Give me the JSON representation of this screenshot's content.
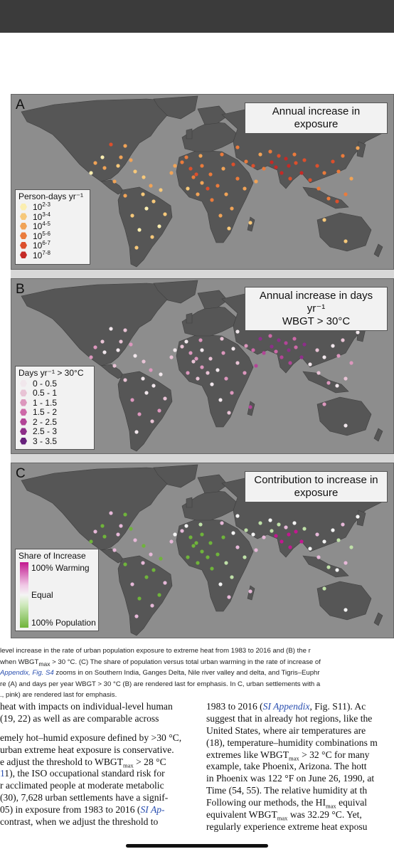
{
  "panels": {
    "a": {
      "letter": "A",
      "title": "Annual increase in exposure",
      "legend_title": "Person-days yr⁻¹",
      "legend": [
        {
          "base": "10",
          "exp": "2-3",
          "color": "#fbeeb0"
        },
        {
          "base": "10",
          "exp": "3-4",
          "color": "#f6c87a"
        },
        {
          "base": "10",
          "exp": "4-5",
          "color": "#f0a357"
        },
        {
          "base": "10",
          "exp": "5-6",
          "color": "#ea7b3c"
        },
        {
          "base": "10",
          "exp": "6-7",
          "color": "#dc4f2c"
        },
        {
          "base": "10",
          "exp": "7-8",
          "color": "#c42a26"
        }
      ]
    },
    "b": {
      "letter": "B",
      "title_line1": "Annual increase in days yr⁻¹",
      "title_line2": "WBGT > 30°C",
      "legend_title": "Days yr⁻¹ > 30°C",
      "legend": [
        {
          "label": "0 - 0.5",
          "color": "#f1e7ec"
        },
        {
          "label": "0.5 - 1",
          "color": "#e8c3d5"
        },
        {
          "label": "1 - 1.5",
          "color": "#dc97bd"
        },
        {
          "label": "1.5 - 2",
          "color": "#cd69a8"
        },
        {
          "label": "2 - 2.5",
          "color": "#b24497"
        },
        {
          "label": "2.5 - 3",
          "color": "#8d2e89"
        },
        {
          "label": "3 - 3.5",
          "color": "#66207b"
        }
      ]
    },
    "c": {
      "letter": "C",
      "title_line1": "Contribution to increase in",
      "title_line2": "exposure",
      "legend_title": "Share of Increase",
      "legend_top": "100% Warming",
      "legend_mid": "Equal",
      "legend_bottom": "100% Population",
      "color_warming": "#c2188f",
      "color_population": "#6fb43b"
    }
  },
  "colors": {
    "ocean": "#8d8d8d",
    "land": "#565656",
    "border": "#3f3f3f"
  },
  "caption": {
    "line1": "level increase in the rate of urban population exposure to extreme heat from 1983 to 2016 and (B) the r",
    "line2_a": "when WBGT",
    "line2_sub": "max",
    "line2_b": " > 30 °C. (C) The share of population versus total urban warming in the rate of increase of",
    "line3_link": "Appendix, Fig. S4",
    "line3_rest": " zooms in on Southern India, Ganges Delta, Nile river valley and delta, and Tigris–Euphr",
    "line4": "re (A) and days per year WBGT > 30 °C (B) are rendered last for emphasis. In C, urban settlements with a",
    "line5": "., pink) are rendered last for emphasis."
  },
  "body_left": [
    "heat with impacts on individual-level human",
    "(19, 22) as well as are comparable across",
    "",
    "emely hot–humid exposure defined by >30 °C,",
    "urban extreme heat exposure is conservative.",
    "e adjust the threshold to WBGT",
    "1), the ISO occupational standard risk for",
    "r acclimated people at moderate metabolic",
    "(30), 7,628 urban settlements have a signif-",
    "05) in exposure from 1983 to 2016 (",
    "contrast, when we adjust the threshold to"
  ],
  "body_left_extra": {
    "l5_sub": "max",
    "l5_tail": " > 28 °C",
    "l9_link": "SI Ap-",
    "l6_link": "1"
  },
  "body_right": [
    "1983 to 2016 (",
    "suggest that in already hot regions, like the",
    "United States, where air temperatures are",
    "(18), temperature–humidity combinations m",
    "extremes like WBGT",
    "example, take Phoenix, Arizona. The hott",
    "in Phoenix was 122 °F on June 26, 1990, at",
    "Time (54, 55). The relative humidity at th",
    "Following our methods, the HI",
    "equivalent WBGT",
    "regularly experience extreme heat exposu"
  ],
  "body_right_extra": {
    "r0_link": "SI Appendix",
    "r0_tail": ", Fig. S11). Ac",
    "r4_sub": "max",
    "r4_tail": " > 32 °C for many",
    "r8_sub": "max",
    "r8_tail": " equival",
    "r9_sub": "max",
    "r9_tail": " was 32.29 °C. Yet, "
  }
}
